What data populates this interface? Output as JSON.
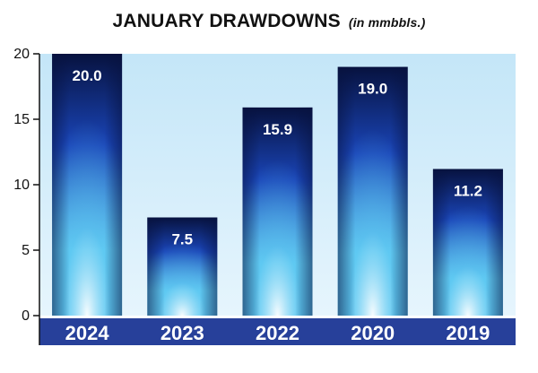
{
  "chart_data": {
    "type": "bar",
    "title": "JANUARY DRAWDOWNS",
    "title_unit": "(in mmbbls.)",
    "categories": [
      "2024",
      "2023",
      "2022",
      "2020",
      "2019"
    ],
    "values": [
      20.0,
      7.5,
      15.9,
      19.0,
      11.2
    ],
    "data_labels": [
      "20.0",
      "7.5",
      "15.9",
      "19.0",
      "11.2"
    ],
    "ylim": [
      0,
      20
    ],
    "yticks": [
      0,
      5,
      10,
      15,
      20
    ],
    "grid": false,
    "legend": "none",
    "colors": {
      "plot_bg_top": "#c4e6f8",
      "plot_bg_bottom": "#e6f5fd",
      "bar_dark": "#07123f",
      "bar_mid": "#1a45b8",
      "bar_light": "#5fc9f2",
      "bar_glow": "#ffffff",
      "category_band": "#27409a",
      "axis": "#111111"
    }
  }
}
